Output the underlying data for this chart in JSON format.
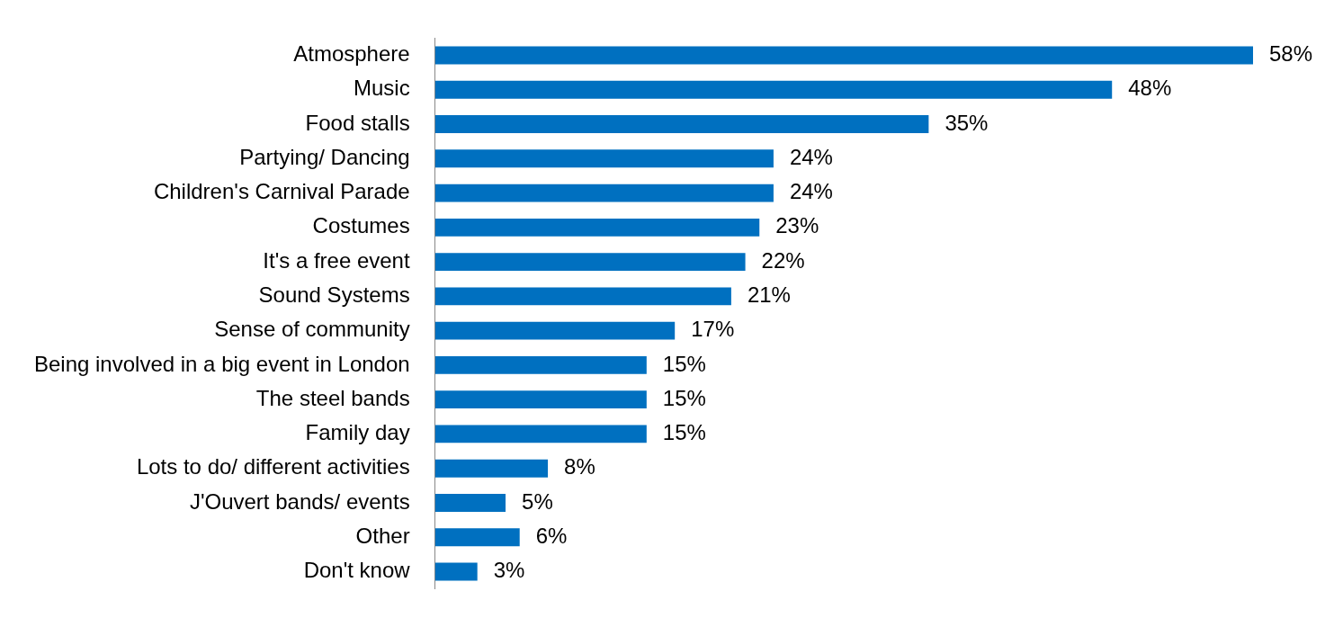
{
  "chart_data": {
    "type": "bar",
    "orientation": "horizontal",
    "categories": [
      "Atmosphere",
      "Music",
      "Food stalls",
      "Partying/ Dancing",
      "Children's Carnival Parade",
      "Costumes",
      "It's a free event",
      "Sound Systems",
      "Sense of community",
      "Being involved in a big event in London",
      "The steel bands",
      "Family day",
      "Lots to do/ different activities",
      "J'Ouvert bands/ events",
      "Other",
      "Don't know"
    ],
    "values": [
      58,
      48,
      35,
      24,
      24,
      23,
      22,
      21,
      17,
      15,
      15,
      15,
      8,
      5,
      6,
      3
    ],
    "value_labels": [
      "58%",
      "48%",
      "35%",
      "24%",
      "24%",
      "23%",
      "22%",
      "21%",
      "17%",
      "15%",
      "15%",
      "15%",
      "8%",
      "5%",
      "6%",
      "3%"
    ],
    "color": "#0070c0",
    "grid": false,
    "legend": false,
    "tick_labels": "y"
  }
}
